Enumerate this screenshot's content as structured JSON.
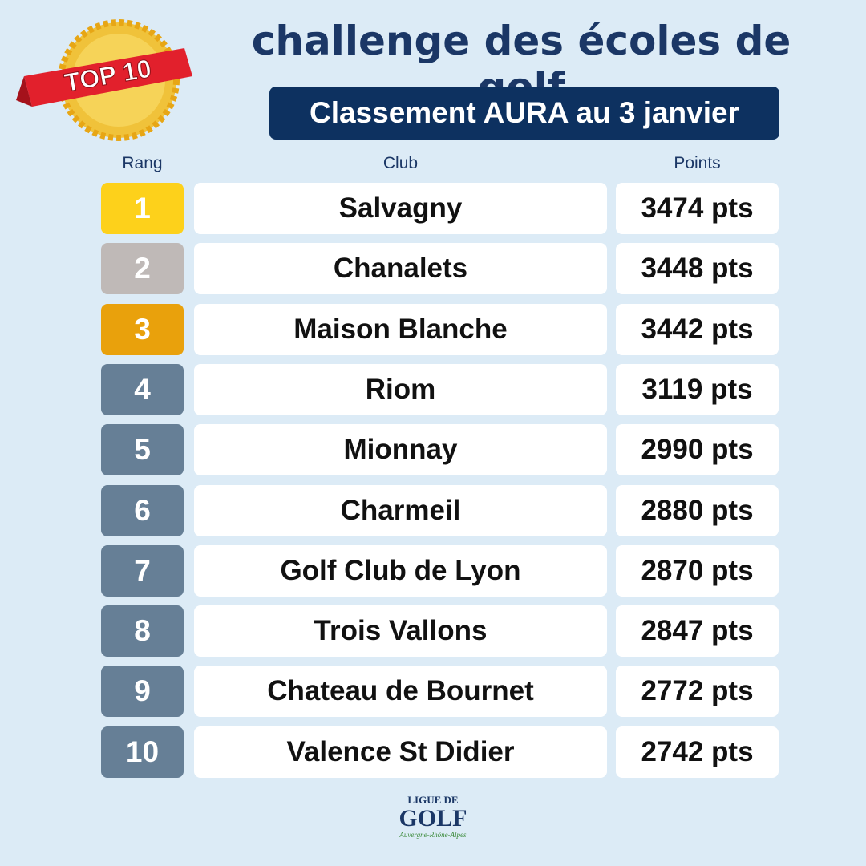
{
  "badge": "TOP 10",
  "header": {
    "title": "challenge des écoles de golf",
    "subtitle": "Classement AURA au 3 janvier"
  },
  "table": {
    "columns": [
      "Rang",
      "Club",
      "Points"
    ],
    "rows": [
      [
        "1",
        "Salvagny",
        "3474 pts"
      ],
      [
        "2",
        "Chanalets",
        "3448 pts"
      ],
      [
        "3",
        "Maison Blanche",
        "3442 pts"
      ],
      [
        "4",
        "Riom",
        "3119 pts"
      ],
      [
        "5",
        "Mionnay",
        "2990 pts"
      ],
      [
        "6",
        "Charmeil",
        "2880 pts"
      ],
      [
        "7",
        "Golf Club de Lyon",
        "2870 pts"
      ],
      [
        "8",
        "Trois Vallons",
        "2847 pts"
      ],
      [
        "9",
        "Chateau de Bournet",
        "2772 pts"
      ],
      [
        "10",
        "Valence St Didier",
        "2742 pts"
      ]
    ]
  },
  "logo": {
    "top": "LIGUE DE",
    "main": "GOLF",
    "bottom": "Auvergne-Rhône-Alpes"
  }
}
